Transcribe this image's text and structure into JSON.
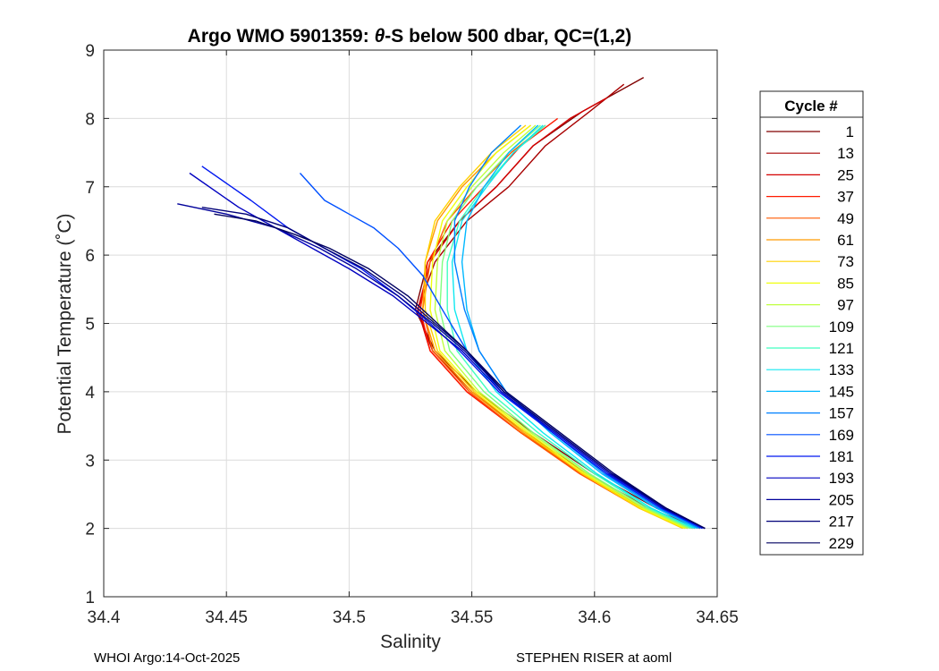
{
  "chart_data": {
    "type": "line",
    "title_prefix": "Argo WMO 5901359: ",
    "title_theta": "θ",
    "title_suffix": "-S below 500 dbar,  QC=(1,2)",
    "xlabel": "Salinity",
    "ylabel": "Potential Temperature (˚C)",
    "xlim": [
      34.4,
      34.65
    ],
    "ylim": [
      1,
      9
    ],
    "xticks": [
      34.4,
      34.45,
      34.5,
      34.55,
      34.6,
      34.65
    ],
    "xtick_labels": [
      "34.4",
      "34.45",
      "34.5",
      "34.55",
      "34.6",
      "34.65"
    ],
    "yticks": [
      1,
      2,
      3,
      4,
      5,
      6,
      7,
      8,
      9
    ],
    "ytick_labels": [
      "1",
      "2",
      "3",
      "4",
      "5",
      "6",
      "7",
      "8",
      "9"
    ],
    "grid": true,
    "legend": {
      "title": "Cycle #",
      "placement": "outside-right",
      "entries": [
        {
          "label": "1",
          "color": "#800000"
        },
        {
          "label": "13",
          "color": "#a80000"
        },
        {
          "label": "25",
          "color": "#d40000"
        },
        {
          "label": "37",
          "color": "#ff1a00"
        },
        {
          "label": "49",
          "color": "#ff5a00"
        },
        {
          "label": "61",
          "color": "#ff9a00"
        },
        {
          "label": "73",
          "color": "#ffd200"
        },
        {
          "label": "85",
          "color": "#f0ff10"
        },
        {
          "label": "97",
          "color": "#c0ff40"
        },
        {
          "label": "109",
          "color": "#80ff80"
        },
        {
          "label": "121",
          "color": "#40ffc0"
        },
        {
          "label": "133",
          "color": "#10e8f0"
        },
        {
          "label": "145",
          "color": "#00b8ff"
        },
        {
          "label": "157",
          "color": "#0080ff"
        },
        {
          "label": "169",
          "color": "#0050ff"
        },
        {
          "label": "181",
          "color": "#0018f0"
        },
        {
          "label": "193",
          "color": "#0000c0"
        },
        {
          "label": "205",
          "color": "#00009a"
        },
        {
          "label": "217",
          "color": "#000078"
        },
        {
          "label": "229",
          "color": "#000060"
        }
      ]
    },
    "series": [
      {
        "name": "1",
        "color": "#800000",
        "x": [
          34.645,
          34.625,
          34.6,
          34.575,
          34.552,
          34.535,
          34.527,
          34.532,
          34.545,
          34.56,
          34.575,
          34.595,
          34.62
        ],
        "y": [
          2.0,
          2.3,
          2.8,
          3.4,
          4.0,
          4.6,
          5.2,
          5.9,
          6.5,
          7.0,
          7.6,
          8.1,
          8.6
        ]
      },
      {
        "name": "13",
        "color": "#a80000",
        "x": [
          34.643,
          34.622,
          34.597,
          34.572,
          34.55,
          34.534,
          34.528,
          34.535,
          34.548,
          34.565,
          34.58,
          34.598,
          34.612
        ],
        "y": [
          2.0,
          2.3,
          2.8,
          3.4,
          4.0,
          4.6,
          5.2,
          5.9,
          6.5,
          7.0,
          7.6,
          8.1,
          8.5
        ]
      },
      {
        "name": "25",
        "color": "#d40000",
        "x": [
          34.641,
          34.62,
          34.595,
          34.57,
          34.548,
          34.533,
          34.528,
          34.533,
          34.545,
          34.56,
          34.575,
          34.59,
          34.605
        ],
        "y": [
          2.0,
          2.3,
          2.8,
          3.4,
          4.0,
          4.6,
          5.2,
          5.9,
          6.5,
          7.0,
          7.6,
          8.0,
          8.3
        ]
      },
      {
        "name": "37",
        "color": "#ff1a00",
        "x": [
          34.64,
          34.619,
          34.594,
          34.57,
          34.548,
          34.533,
          34.529,
          34.532,
          34.542,
          34.555,
          34.57,
          34.585
        ],
        "y": [
          2.0,
          2.3,
          2.8,
          3.4,
          4.0,
          4.6,
          5.2,
          5.9,
          6.5,
          7.0,
          7.6,
          8.0
        ]
      },
      {
        "name": "49",
        "color": "#ff5a00",
        "x": [
          34.638,
          34.618,
          34.594,
          34.57,
          34.549,
          34.534,
          34.53,
          34.533,
          34.54,
          34.552,
          34.566,
          34.58
        ],
        "y": [
          2.0,
          2.3,
          2.8,
          3.4,
          4.0,
          4.6,
          5.2,
          5.9,
          6.5,
          7.0,
          7.5,
          7.9
        ]
      },
      {
        "name": "61",
        "color": "#ff9a00",
        "x": [
          34.637,
          34.618,
          34.595,
          34.571,
          34.55,
          34.535,
          34.53,
          34.531,
          34.536,
          34.546,
          34.56,
          34.574
        ],
        "y": [
          2.0,
          2.3,
          2.8,
          3.4,
          4.0,
          4.6,
          5.2,
          5.9,
          6.5,
          7.0,
          7.5,
          7.9
        ]
      },
      {
        "name": "73",
        "color": "#ffd200",
        "x": [
          34.636,
          34.618,
          34.595,
          34.572,
          34.551,
          34.536,
          34.531,
          34.531,
          34.535,
          34.545,
          34.558,
          34.572
        ],
        "y": [
          2.0,
          2.3,
          2.8,
          3.4,
          4.0,
          4.6,
          5.2,
          5.9,
          6.5,
          7.0,
          7.5,
          7.9
        ]
      },
      {
        "name": "85",
        "color": "#f0ff10",
        "x": [
          34.637,
          34.619,
          34.596,
          34.573,
          34.552,
          34.537,
          34.533,
          34.534,
          34.538,
          34.548,
          34.56,
          34.574
        ],
        "y": [
          2.0,
          2.3,
          2.8,
          3.4,
          4.0,
          4.6,
          5.2,
          5.9,
          6.5,
          7.0,
          7.5,
          7.9
        ]
      },
      {
        "name": "97",
        "color": "#c0ff40",
        "x": [
          34.638,
          34.62,
          34.597,
          34.574,
          34.553,
          34.539,
          34.535,
          34.536,
          34.54,
          34.55,
          34.563,
          34.576
        ],
        "y": [
          2.0,
          2.3,
          2.8,
          3.4,
          4.0,
          4.6,
          5.2,
          5.9,
          6.5,
          7.0,
          7.5,
          7.9
        ]
      },
      {
        "name": "109",
        "color": "#80ff80",
        "x": [
          34.639,
          34.621,
          34.598,
          34.575,
          34.555,
          34.541,
          34.537,
          34.538,
          34.542,
          34.552,
          34.565,
          34.578
        ],
        "y": [
          2.0,
          2.3,
          2.8,
          3.4,
          4.0,
          4.6,
          5.2,
          5.9,
          6.5,
          7.0,
          7.5,
          7.9
        ]
      },
      {
        "name": "121",
        "color": "#40ffc0",
        "x": [
          34.64,
          34.622,
          34.6,
          34.577,
          34.557,
          34.544,
          34.54,
          34.54,
          34.545,
          34.555,
          34.567,
          34.58
        ],
        "y": [
          2.0,
          2.3,
          2.8,
          3.4,
          4.0,
          4.6,
          5.2,
          5.9,
          6.5,
          7.0,
          7.5,
          7.9
        ]
      },
      {
        "name": "133",
        "color": "#10e8f0",
        "x": [
          34.641,
          34.623,
          34.601,
          34.579,
          34.56,
          34.548,
          34.543,
          34.542,
          34.546,
          34.556,
          34.567,
          34.579
        ],
        "y": [
          2.0,
          2.3,
          2.8,
          3.4,
          4.0,
          4.6,
          5.2,
          5.9,
          6.5,
          7.0,
          7.5,
          7.9
        ]
      },
      {
        "name": "145",
        "color": "#00b8ff",
        "x": [
          34.642,
          34.625,
          34.603,
          34.582,
          34.564,
          34.553,
          34.548,
          34.546,
          34.548,
          34.555,
          34.565,
          34.577
        ],
        "y": [
          2.0,
          2.3,
          2.8,
          3.4,
          4.0,
          4.6,
          5.2,
          5.9,
          6.5,
          7.0,
          7.5,
          7.9
        ]
      },
      {
        "name": "157",
        "color": "#0080ff",
        "x": [
          34.643,
          34.626,
          34.604,
          34.583,
          34.564,
          34.553,
          34.547,
          34.543,
          34.543,
          34.549,
          34.558,
          34.57
        ],
        "y": [
          2.0,
          2.3,
          2.8,
          3.4,
          4.0,
          4.6,
          5.2,
          5.9,
          6.5,
          7.0,
          7.5,
          7.9
        ]
      },
      {
        "name": "169",
        "color": "#0050ff",
        "x": [
          34.644,
          34.627,
          34.605,
          34.583,
          34.562,
          34.548,
          34.538,
          34.53,
          34.52,
          34.51,
          34.5,
          34.49,
          34.48
        ],
        "y": [
          2.0,
          2.3,
          2.8,
          3.4,
          4.0,
          4.6,
          5.2,
          5.7,
          6.1,
          6.4,
          6.6,
          6.8,
          7.2
        ]
      },
      {
        "name": "181",
        "color": "#0018f0",
        "x": [
          34.644,
          34.627,
          34.605,
          34.583,
          34.561,
          34.545,
          34.533,
          34.52,
          34.505,
          34.49,
          34.475,
          34.46,
          34.44
        ],
        "y": [
          2.0,
          2.3,
          2.8,
          3.4,
          4.0,
          4.6,
          5.0,
          5.4,
          5.8,
          6.1,
          6.4,
          6.8,
          7.3
        ]
      },
      {
        "name": "193",
        "color": "#0000c0",
        "x": [
          34.645,
          34.628,
          34.606,
          34.584,
          34.562,
          34.546,
          34.532,
          34.518,
          34.5,
          34.485,
          34.47,
          34.455,
          34.435
        ],
        "y": [
          2.0,
          2.3,
          2.8,
          3.4,
          4.0,
          4.6,
          5.0,
          5.4,
          5.8,
          6.1,
          6.4,
          6.7,
          7.2
        ]
      },
      {
        "name": "205",
        "color": "#00009a",
        "x": [
          34.645,
          34.628,
          34.607,
          34.585,
          34.563,
          34.547,
          34.534,
          34.52,
          34.503,
          34.488,
          34.47,
          34.45,
          34.43
        ],
        "y": [
          2.0,
          2.3,
          2.8,
          3.4,
          4.0,
          4.6,
          5.0,
          5.4,
          5.8,
          6.1,
          6.4,
          6.6,
          6.75
        ]
      },
      {
        "name": "217",
        "color": "#000078",
        "x": [
          34.645,
          34.629,
          34.607,
          34.585,
          34.563,
          34.548,
          34.535,
          34.522,
          34.506,
          34.49,
          34.475,
          34.458,
          34.44
        ],
        "y": [
          2.0,
          2.3,
          2.8,
          3.4,
          4.0,
          4.6,
          5.0,
          5.4,
          5.8,
          6.1,
          6.4,
          6.6,
          6.7
        ]
      },
      {
        "name": "229",
        "color": "#000060",
        "x": [
          34.645,
          34.629,
          34.608,
          34.586,
          34.564,
          34.548,
          34.536,
          34.524,
          34.508,
          34.492,
          34.478,
          34.462,
          34.445
        ],
        "y": [
          2.0,
          2.3,
          2.8,
          3.4,
          4.0,
          4.6,
          5.0,
          5.4,
          5.8,
          6.1,
          6.3,
          6.5,
          6.6
        ]
      }
    ]
  },
  "footer": {
    "left": "WHOI Argo:14-Oct-2025",
    "right": "STEPHEN RISER at aoml"
  }
}
